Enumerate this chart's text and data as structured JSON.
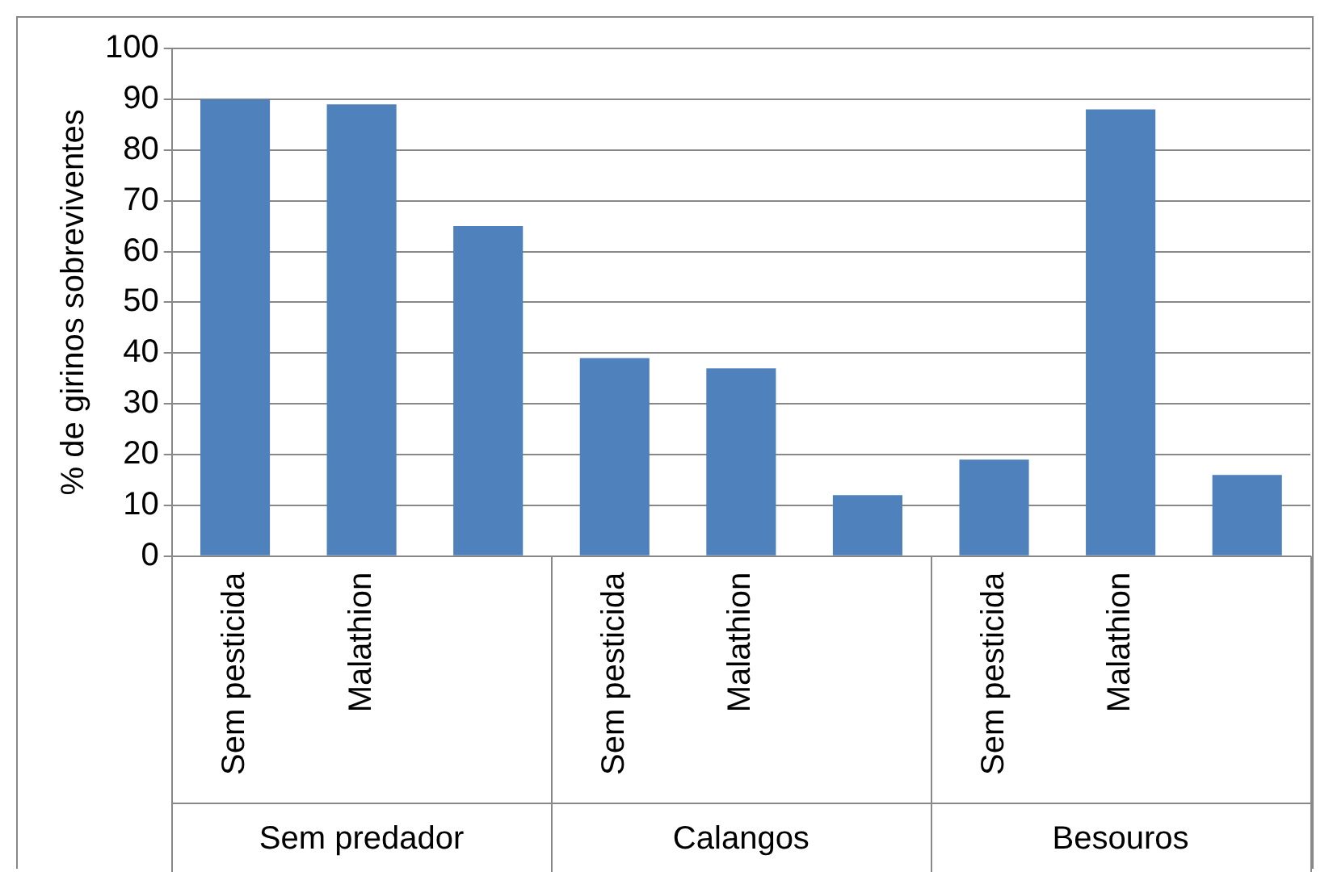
{
  "chart_data": {
    "type": "bar",
    "ylabel": "% de girinos sobreviventes",
    "categories": [
      "Sem pesticida",
      "Malathion",
      null,
      "Sem pesticida",
      "Malathion",
      null,
      "Sem pesticida",
      "Malathion",
      null
    ],
    "values": [
      90,
      89,
      65,
      39,
      37,
      12,
      19,
      88,
      16
    ],
    "color": "#4f81bd",
    "ylim": [
      0,
      100
    ],
    "yticks": [
      0,
      10,
      20,
      30,
      40,
      50,
      60,
      70,
      80,
      90,
      100
    ],
    "grid": "y",
    "annotations": [
      "Sem predador",
      "Calangos",
      "Besouros"
    ]
  }
}
